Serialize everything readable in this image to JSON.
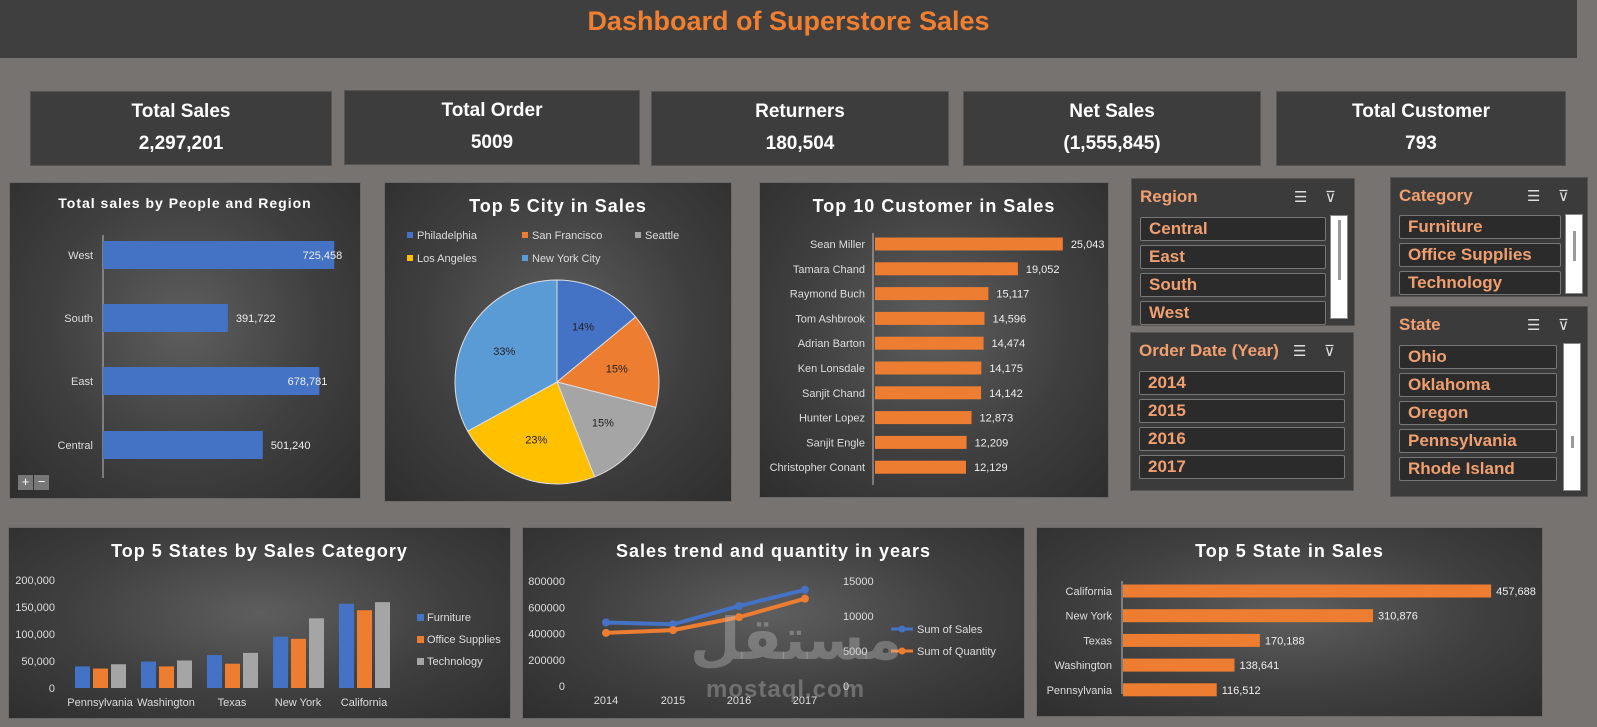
{
  "header": {
    "title": "Dashboard of Superstore Sales"
  },
  "kpis": [
    {
      "label": "Total Sales",
      "value": "2,297,201"
    },
    {
      "label": "Total Order",
      "value": "5009"
    },
    {
      "label": "Returners",
      "value": "180,504"
    },
    {
      "label": "Net Sales",
      "value": "(1,555,845)"
    },
    {
      "label": "Total Customer",
      "value": "793"
    }
  ],
  "slicers": {
    "region": {
      "title": "Region",
      "items": [
        "Central",
        "East",
        "South",
        "West"
      ]
    },
    "category": {
      "title": "Category",
      "items": [
        "Furniture",
        "Office Supplies",
        "Technology"
      ]
    },
    "order_date": {
      "title": "Order Date (Year)",
      "items": [
        "2014",
        "2015",
        "2016",
        "2017"
      ]
    },
    "state": {
      "title": "State",
      "items": [
        "Ohio",
        "Oklahoma",
        "Oregon",
        "Pennsylvania",
        "Rhode Island"
      ]
    }
  },
  "zoom": {
    "plus": "+",
    "minus": "−"
  },
  "watermark": {
    "arabic": "مستقل",
    "latin": "mostaql.com"
  },
  "colors": {
    "orange": "#f07f30",
    "blue": "#4472c4",
    "gray": "#a5a5a5",
    "yellow": "#ffc000",
    "lightblue": "#5b9bd5"
  },
  "chart_data": [
    {
      "type": "bar",
      "title": "Total sales by People and Region",
      "categories": [
        "West",
        "South",
        "East",
        "Central"
      ],
      "values": [
        725458,
        391722,
        678781,
        501240
      ],
      "labels": [
        "725,458",
        "391,722",
        "678,781",
        "501,240"
      ],
      "color": "#4472c4"
    },
    {
      "type": "pie",
      "title": "Top 5 City in Sales",
      "legend_labels": [
        "Philadelphia",
        "San Francisco",
        "Seattle",
        "Los Angeles",
        "New York City"
      ],
      "slices": [
        {
          "name": "Philadelphia",
          "value": 14,
          "label": "14%",
          "color": "#4472c4"
        },
        {
          "name": "San Francisco",
          "value": 15,
          "label": "15%",
          "color": "#ed7d31"
        },
        {
          "name": "Seattle",
          "value": 15,
          "label": "15%",
          "color": "#a5a5a5"
        },
        {
          "name": "Los Angeles",
          "value": 23,
          "label": "23%",
          "color": "#ffc000"
        },
        {
          "name": "New York City",
          "value": 33,
          "label": "33%",
          "color": "#5b9bd5"
        }
      ]
    },
    {
      "type": "bar",
      "title": "Top 10 Customer in Sales",
      "categories": [
        "Sean Miller",
        "Tamara Chand",
        "Raymond Buch",
        "Tom Ashbrook",
        "Adrian Barton",
        "Ken Lonsdale",
        "Sanjit Chand",
        "Hunter Lopez",
        "Sanjit Engle",
        "Christopher Conant"
      ],
      "values": [
        25043,
        19052,
        15117,
        14596,
        14474,
        14175,
        14142,
        12873,
        12209,
        12129
      ],
      "labels": [
        "25,043",
        "19,052",
        "15,117",
        "14,596",
        "14,474",
        "14,175",
        "14,142",
        "12,873",
        "12,209",
        "12,129"
      ],
      "color": "#ed7d31"
    },
    {
      "type": "bar",
      "title": "Top 5 States by Sales Category",
      "categories": [
        "Pennsylvania",
        "Washington",
        "Texas",
        "New York",
        "California"
      ],
      "series": [
        {
          "name": "Furniture",
          "values": [
            40000,
            49000,
            61000,
            95000,
            156000
          ],
          "color": "#4472c4"
        },
        {
          "name": "Office Supplies",
          "values": [
            36000,
            40000,
            45000,
            91000,
            144000
          ],
          "color": "#ed7d31"
        },
        {
          "name": "Technology",
          "values": [
            44000,
            51000,
            65000,
            129000,
            159000
          ],
          "color": "#a5a5a5"
        }
      ],
      "yticks": [
        "0",
        "50,000",
        "100,000",
        "150,000",
        "200,000"
      ],
      "ylim": [
        0,
        200000
      ]
    },
    {
      "type": "line",
      "title": "Sales trend and quantity in years",
      "x": [
        "2014",
        "2015",
        "2016",
        "2017"
      ],
      "series": [
        {
          "name": "Sum of Sales",
          "axis": "left",
          "values": [
            484247,
            470533,
            609206,
            733215
          ],
          "color": "#4472c4"
        },
        {
          "name": "Sum of Quantity",
          "axis": "right",
          "values": [
            7581,
            7979,
            9837,
            12476
          ],
          "color": "#ed7d31"
        }
      ],
      "yticks_left": [
        "0",
        "200000",
        "400000",
        "600000",
        "800000"
      ],
      "yticks_right": [
        "0",
        "5000",
        "10000",
        "15000"
      ],
      "ylim_left": [
        0,
        800000
      ],
      "ylim_right": [
        0,
        15000
      ]
    },
    {
      "type": "bar",
      "title": "Top 5 State in Sales",
      "categories": [
        "California",
        "New York",
        "Texas",
        "Washington",
        "Pennsylvania"
      ],
      "values": [
        457688,
        310876,
        170188,
        138641,
        116512
      ],
      "labels": [
        "457,688",
        "310,876",
        "170,188",
        "138,641",
        "116,512"
      ],
      "color": "#ed7d31"
    }
  ]
}
